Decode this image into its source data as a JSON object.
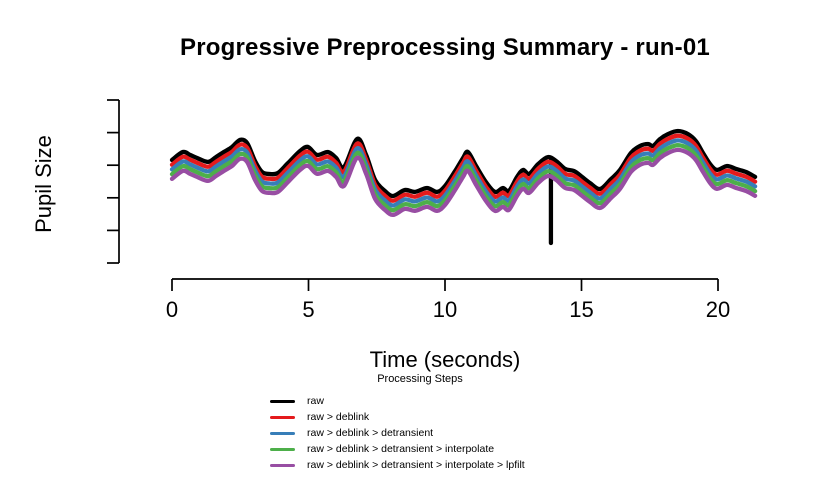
{
  "title": "Progressive Preprocessing Summary - run-01",
  "chart_data": {
    "type": "line",
    "title": "Progressive Preprocessing Summary - run-01",
    "xlabel": "Time (seconds)",
    "ylabel": "Pupil Size",
    "xlim": [
      0,
      21.5
    ],
    "xticks": [
      0,
      5,
      10,
      15,
      20
    ],
    "ylim": [
      0,
      100
    ],
    "ytick_values": [
      0,
      20,
      40,
      60,
      80,
      100
    ],
    "ytick_labels_shown": false,
    "grid": false,
    "legend_position": "bottom",
    "x": [
      0,
      0.4,
      0.66,
      0.92,
      1.32,
      1.61,
      1.9,
      2.2,
      2.49,
      2.75,
      3.04,
      3.3,
      3.59,
      3.88,
      4.25,
      4.69,
      4.98,
      5.31,
      5.71,
      6.01,
      6.3,
      6.78,
      7.11,
      7.44,
      7.8,
      8.1,
      8.53,
      8.9,
      9.34,
      9.71,
      10.0,
      10.37,
      10.66,
      10.84,
      11.14,
      11.5,
      11.83,
      12.12,
      12.34,
      12.64,
      12.86,
      13.08,
      13.41,
      13.77,
      14.07,
      14.4,
      14.73,
      15.02,
      15.31,
      15.68,
      16.08,
      16.41,
      16.81,
      17.14,
      17.44,
      17.62,
      17.88,
      18.17,
      18.53,
      18.9,
      19.19,
      19.45,
      19.71,
      19.96,
      20.33,
      20.66,
      21.03,
      21.36
    ],
    "base_values": [
      63.2,
      68.1,
      66.3,
      64.4,
      62.0,
      65.0,
      68.1,
      71.2,
      75.5,
      73.6,
      62.6,
      55.8,
      54.6,
      55.2,
      61.3,
      68.7,
      71.2,
      66.3,
      68.1,
      64.4,
      58.9,
      76.1,
      66.3,
      50.9,
      44.2,
      41.1,
      44.8,
      43.6,
      46.0,
      43.6,
      47.2,
      56.4,
      64.4,
      68.1,
      59.5,
      49.7,
      43.6,
      46.0,
      44.2,
      52.8,
      57.1,
      54.6,
      60.7,
      65.0,
      62.6,
      57.7,
      56.4,
      52.8,
      49.1,
      45.4,
      51.5,
      57.1,
      67.5,
      71.8,
      73.0,
      71.8,
      76.1,
      79.1,
      81.0,
      79.1,
      74.8,
      67.5,
      60.7,
      57.1,
      59.5,
      57.7,
      55.8,
      52.8
    ],
    "series": [
      {
        "name": "raw",
        "color": "#000000",
        "offset_u": 0
      },
      {
        "name": "raw > deblink",
        "color": "#e41a1c",
        "offset_u": -2.9
      },
      {
        "name": "raw > deblink > detransient",
        "color": "#377eb8",
        "offset_u": -5.8
      },
      {
        "name": "raw > deblink > detransient > interpolate",
        "color": "#4daf4a",
        "offset_u": -8.7
      },
      {
        "name": "raw > deblink > detransient > interpolate > lpfilt",
        "color": "#984ea3",
        "offset_u": -11.6
      }
    ],
    "blink_spike": {
      "series": "raw",
      "t": 13.88,
      "u_top": 64.0,
      "u_bottom": 12.3,
      "color": "#000000"
    }
  },
  "legend": {
    "title": "Processing Steps",
    "entries": [
      {
        "label": "raw",
        "color": "#000000"
      },
      {
        "label": "raw > deblink",
        "color": "#e41a1c"
      },
      {
        "label": "raw > deblink > detransient",
        "color": "#377eb8"
      },
      {
        "label": "raw > deblink > detransient > interpolate",
        "color": "#4daf4a"
      },
      {
        "label": "raw > deblink > detransient > interpolate > lpfilt",
        "color": "#984ea3"
      }
    ]
  },
  "colors": {
    "axis": "#000000",
    "background": "#ffffff"
  }
}
